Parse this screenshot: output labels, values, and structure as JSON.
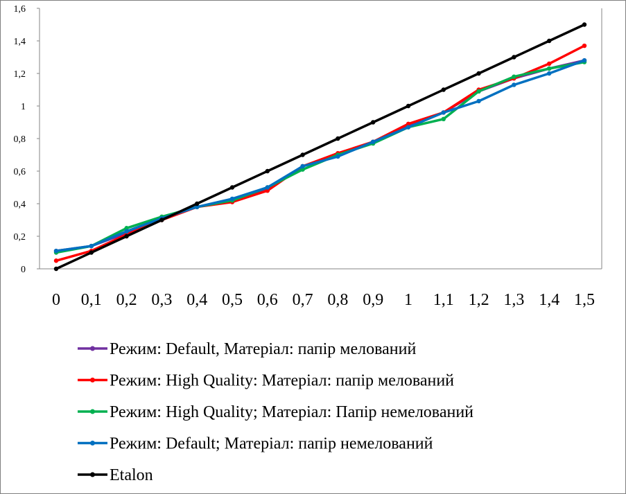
{
  "chart_data": {
    "type": "line",
    "x": [
      "0",
      "0,1",
      "0,2",
      "0,3",
      "0,4",
      "0,5",
      "0,6",
      "0,7",
      "0,8",
      "0,9",
      "1",
      "1,1",
      "1,2",
      "1,3",
      "1,4",
      "1,5"
    ],
    "ylim": [
      0,
      1.6
    ],
    "yticks": [
      0,
      0.2,
      0.4,
      0.6,
      0.8,
      1,
      1.2,
      1.4,
      1.6
    ],
    "ytick_labels": [
      "0",
      "0,2",
      "0,4",
      "0,6",
      "0,8",
      "1",
      "1,2",
      "1,4",
      "1,6"
    ],
    "grid": false,
    "legend_position": "bottom",
    "series": [
      {
        "name": "Режим: Default, Матеріал: папір мелований",
        "color": "#7030a0",
        "values": [
          0.11,
          0.14,
          0.22,
          0.31,
          0.38,
          0.42,
          0.49,
          0.63,
          0.7,
          0.78,
          0.88,
          0.96,
          1.09,
          1.17,
          1.23,
          1.28
        ]
      },
      {
        "name": "Режим: High Quality: Матеріал: папір  мелований",
        "color": "#ff0000",
        "values": [
          0.05,
          0.11,
          0.21,
          0.3,
          0.38,
          0.41,
          0.48,
          0.63,
          0.71,
          0.78,
          0.89,
          0.96,
          1.1,
          1.17,
          1.26,
          1.37
        ]
      },
      {
        "name": "Режим: High Quality; Матеріал: Папір немелований",
        "color": "#00b050",
        "values": [
          0.1,
          0.14,
          0.25,
          0.32,
          0.38,
          0.42,
          0.5,
          0.61,
          0.7,
          0.77,
          0.87,
          0.92,
          1.09,
          1.18,
          1.23,
          1.27
        ]
      },
      {
        "name": "Режим: Default; Матеріал: папір немелований",
        "color": "#0070c0",
        "values": [
          0.11,
          0.14,
          0.23,
          0.31,
          0.38,
          0.43,
          0.5,
          0.63,
          0.69,
          0.78,
          0.87,
          0.96,
          1.03,
          1.13,
          1.2,
          1.28
        ]
      },
      {
        "name": "Etalon",
        "color": "#000000",
        "values": [
          0,
          0.1,
          0.2,
          0.3,
          0.4,
          0.5,
          0.6,
          0.7,
          0.8,
          0.9,
          1.0,
          1.1,
          1.2,
          1.3,
          1.4,
          1.5
        ]
      }
    ]
  }
}
